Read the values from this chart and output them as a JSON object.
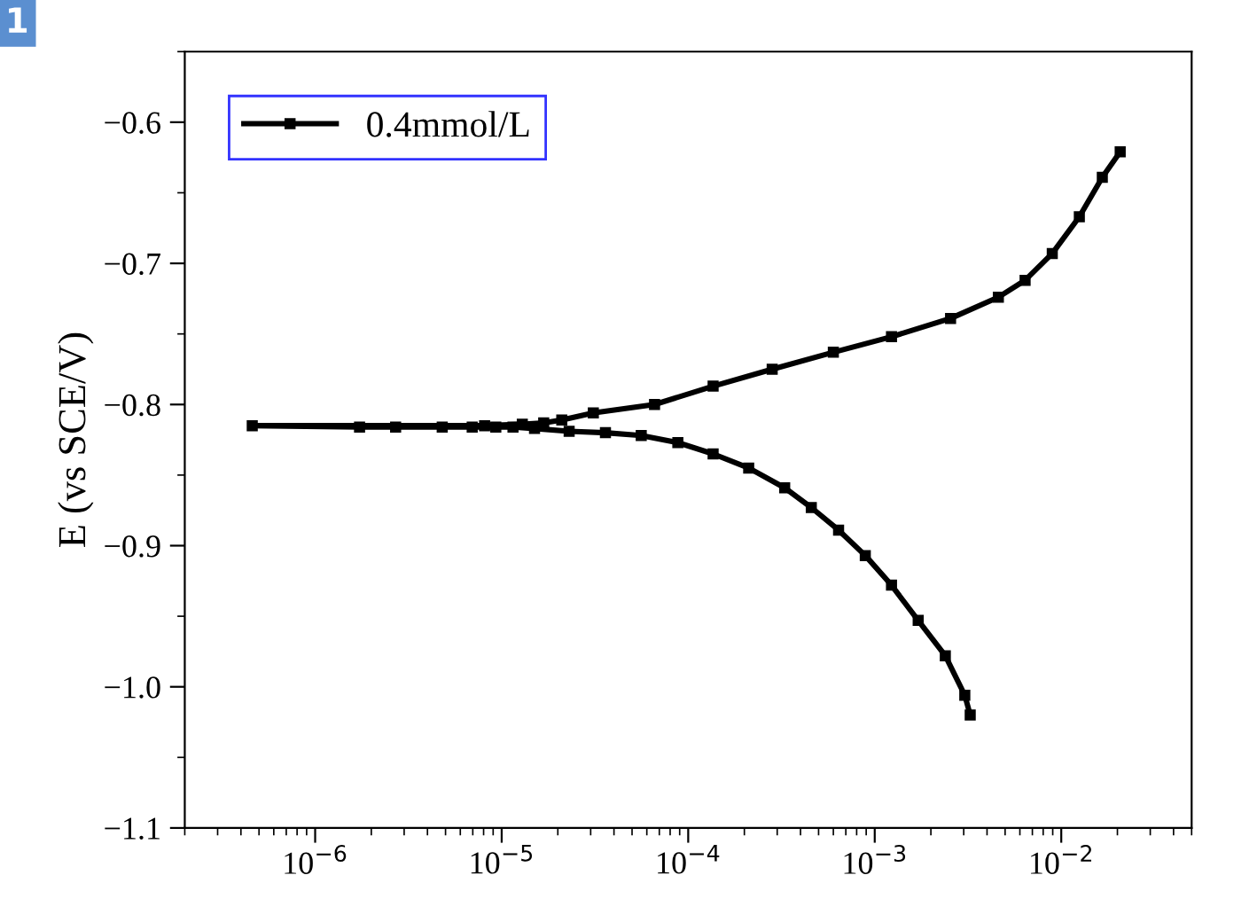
{
  "chart_data": {
    "type": "line",
    "ylabel": "E (vs SCE/V)",
    "annotations": [
      "1"
    ],
    "series": [
      {
        "name": "0.4mmol/L",
        "color": "#000000",
        "x": [
          0.00325,
          0.00304,
          0.00239,
          0.00171,
          0.00123,
          0.00089,
          0.00064,
          0.000457,
          0.000329,
          0.000211,
          0.000136,
          8.8e-05,
          5.6e-05,
          3.6e-05,
          2.3e-05,
          1.5e-05,
          1.15e-05,
          9.3e-06,
          6.95e-06,
          4.8e-06,
          2.7e-06,
          1.73e-06,
          4.6e-07,
          8.1e-06,
          1.29e-05,
          1.68e-05,
          2.1e-05,
          3.1e-05,
          6.6e-05,
          0.000136,
          0.000282,
          0.0006,
          0.00123,
          0.00255,
          0.0046,
          0.0064,
          0.00895,
          0.0125,
          0.0166,
          0.0207
        ],
        "values": [
          -1.02,
          -1.006,
          -0.978,
          -0.953,
          -0.928,
          -0.907,
          -0.889,
          -0.873,
          -0.859,
          -0.845,
          -0.835,
          -0.827,
          -0.822,
          -0.82,
          -0.819,
          -0.817,
          -0.816,
          -0.816,
          -0.816,
          -0.816,
          -0.816,
          -0.816,
          -0.815,
          -0.815,
          -0.814,
          -0.813,
          -0.811,
          -0.806,
          -0.8,
          -0.787,
          -0.775,
          -0.763,
          -0.752,
          -0.739,
          -0.724,
          -0.712,
          -0.693,
          -0.667,
          -0.639,
          -0.621
        ]
      }
    ],
    "log": "x",
    "xlim": [
      2e-07,
      0.05
    ],
    "xticks": [
      {
        "value": 1e-06,
        "label": "10$^{−6}$"
      },
      {
        "value": 1e-05,
        "label": "10$^{−5}$"
      },
      {
        "value": 0.0001,
        "label": "10$^{−4}$"
      },
      {
        "value": 0.001,
        "label": "10$^{−3}$"
      },
      {
        "value": 0.01,
        "label": "10$^{−2}$"
      }
    ],
    "ylim": [
      -1.1,
      -0.55
    ],
    "yticks": [
      {
        "value": -1.1,
        "label": "−1.1"
      },
      {
        "value": -1.0,
        "label": "−1.0"
      },
      {
        "value": -0.9,
        "label": "−0.9"
      },
      {
        "value": -0.8,
        "label": "−0.8"
      },
      {
        "value": -0.7,
        "label": "−0.7"
      },
      {
        "value": -0.6,
        "label": "−0.6"
      }
    ],
    "marker": "square",
    "line_style": "solid",
    "legend": "top left",
    "grid": false
  }
}
